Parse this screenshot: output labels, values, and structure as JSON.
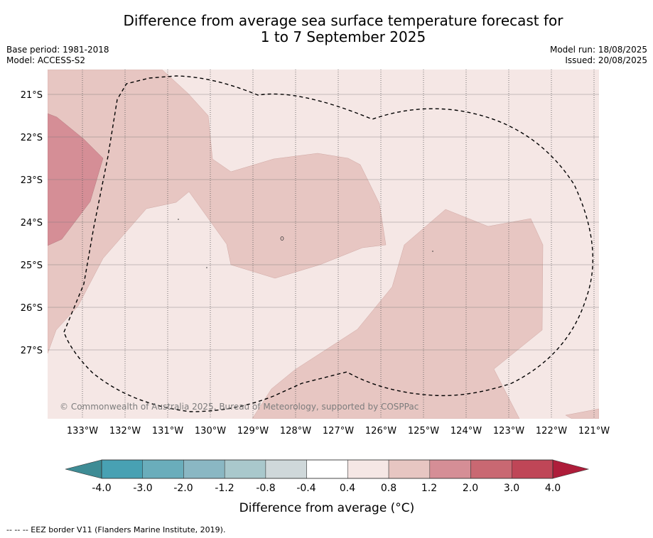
{
  "title_line1": "Difference from average sea surface temperature forecast for",
  "title_line2": "1 to 7 September 2025",
  "base_period": "Base period: 1981-2018",
  "model": "Model: ACCESS-S2",
  "model_run": "Model run: 18/08/2025",
  "issued": "Issued: 20/08/2025",
  "copyright": "© Commonwealth of Australia 2025, Bureau of Meteorology, supported by COSPPac",
  "lat_ticks": [
    "21°S",
    "22°S",
    "23°S",
    "24°S",
    "25°S",
    "26°S",
    "27°S"
  ],
  "lon_ticks": [
    "133°W",
    "132°W",
    "131°W",
    "130°W",
    "129°W",
    "128°W",
    "127°W",
    "126°W",
    "125°W",
    "124°W",
    "123°W",
    "122°W",
    "121°W"
  ],
  "colorbar": {
    "title": "Difference from average (°C)",
    "labels": [
      "-4.0",
      "-3.0",
      "-2.0",
      "-1.2",
      "-0.8",
      "-0.4",
      "0.4",
      "0.8",
      "1.2",
      "2.0",
      "3.0",
      "4.0"
    ],
    "colors": [
      "#3e8c95",
      "#48a1b3",
      "#6aadbb",
      "#8ab7c3",
      "#a9c8cc",
      "#cfd8da",
      "#ffffff",
      "#f5e7e5",
      "#e7c6c2",
      "#d58e96",
      "#c96872",
      "#bf4657",
      "#ae1d3a"
    ]
  },
  "footnote": "--  --  -- EEZ border V11 (Flanders Marine Institute, 2019).",
  "chart_data": {
    "type": "heatmap",
    "variable": "Difference from average sea surface temperature",
    "units": "°C",
    "lat_range": [
      "27°S",
      "21°S"
    ],
    "lon_range": [
      "133°W",
      "121°W"
    ],
    "levels": [
      -4.0,
      -3.0,
      -2.0,
      -1.2,
      -0.8,
      -0.4,
      0.4,
      0.8,
      1.2,
      2.0,
      3.0,
      4.0
    ],
    "regions": [
      {
        "range": [
          0.4,
          0.8
        ],
        "color": "#f5e7e5"
      },
      {
        "range": [
          0.8,
          1.2
        ],
        "color": "#e7c6c2"
      },
      {
        "range": [
          1.2,
          2.0
        ],
        "color": "#d58e96"
      }
    ]
  }
}
